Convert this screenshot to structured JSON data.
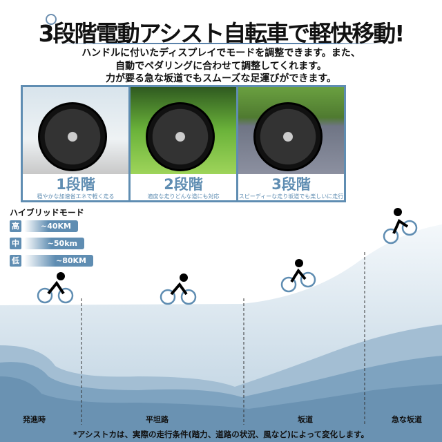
{
  "header": {
    "title": "3段階電動アシスト自転車で軽快移動!",
    "lines": [
      "ハンドルに付いたディスプレイでモードを調整できます。また、",
      "自動でペダリングに合わせて調整してくれます。",
      "力が要る急な坂道でもスムーズな足運びができます。"
    ]
  },
  "levels": [
    {
      "label": "1段階",
      "desc": "穏やかな加速省エネで軽く走る"
    },
    {
      "label": "2段階",
      "desc": "適度な走りどんな道にも対応"
    },
    {
      "label": "3段階",
      "desc": "スピーディーな走り坂道でも楽しいに走行"
    }
  ],
  "hybrid": {
    "title": "ハイブリッドモード",
    "modes": [
      {
        "key": "高",
        "range": "~40KM"
      },
      {
        "key": "中",
        "range": "~50km"
      },
      {
        "key": "低",
        "range": "~80KM"
      }
    ]
  },
  "terrain": [
    "発進時",
    "平坦路",
    "坂道",
    "急な坂道"
  ],
  "footnote": "*アシストカは、実際の走行条件(踏力、道路の状況、風など)によって変化します。",
  "colors": {
    "accent": "#5f8db2"
  }
}
